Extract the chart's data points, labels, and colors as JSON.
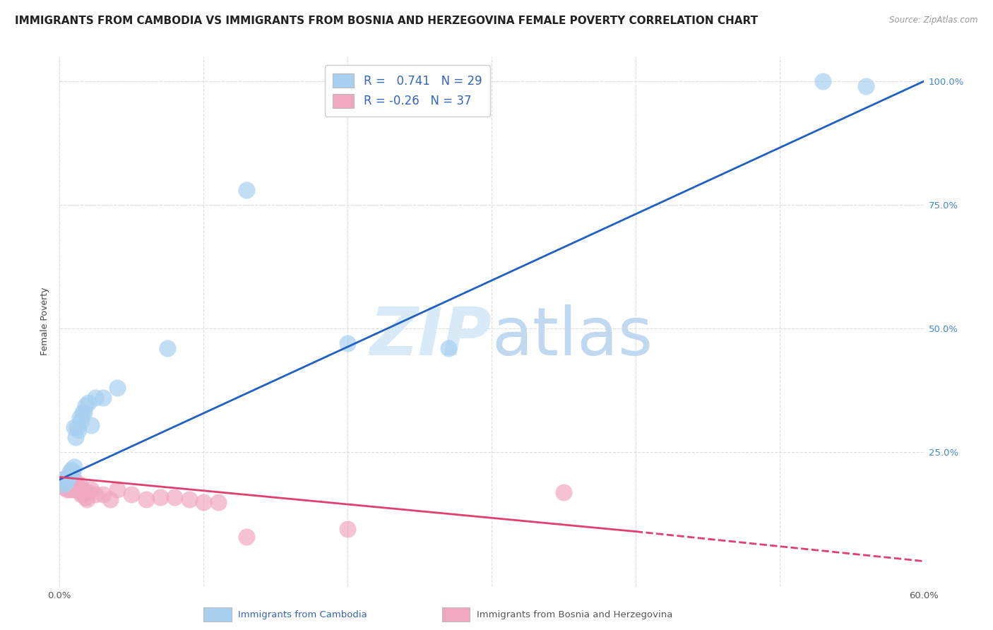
{
  "title": "IMMIGRANTS FROM CAMBODIA VS IMMIGRANTS FROM BOSNIA AND HERZEGOVINA FEMALE POVERTY CORRELATION CHART",
  "source": "Source: ZipAtlas.com",
  "xlabel_label": "Immigrants from Cambodia",
  "xlabel_label2": "Immigrants from Bosnia and Herzegovina",
  "ylabel": "Female Poverty",
  "xlim": [
    0.0,
    0.6
  ],
  "ylim": [
    -0.02,
    1.05
  ],
  "xticks": [
    0.0,
    0.1,
    0.2,
    0.3,
    0.4,
    0.5,
    0.6
  ],
  "xtick_labels": [
    "0.0%",
    "",
    "",
    "",
    "",
    "",
    "60.0%"
  ],
  "yticks": [
    0.0,
    0.25,
    0.5,
    0.75,
    1.0
  ],
  "ytick_labels_right": [
    "",
    "25.0%",
    "50.0%",
    "75.0%",
    "100.0%"
  ],
  "R_cambodia": 0.741,
  "N_cambodia": 29,
  "R_bosnia": -0.26,
  "N_bosnia": 37,
  "cambodia_color": "#a8d0f0",
  "bosnia_color": "#f0a8c0",
  "cambodia_line_color": "#2060c0",
  "bosnia_line_color": "#e04070",
  "watermark_color": "#d8eaf8",
  "background_color": "#ffffff",
  "grid_color": "#dddddd",
  "scatter_cambodia": [
    [
      0.002,
      0.195
    ],
    [
      0.003,
      0.185
    ],
    [
      0.004,
      0.19
    ],
    [
      0.005,
      0.195
    ],
    [
      0.006,
      0.2
    ],
    [
      0.007,
      0.21
    ],
    [
      0.008,
      0.215
    ],
    [
      0.009,
      0.21
    ],
    [
      0.01,
      0.22
    ],
    [
      0.01,
      0.3
    ],
    [
      0.011,
      0.28
    ],
    [
      0.012,
      0.3
    ],
    [
      0.013,
      0.295
    ],
    [
      0.014,
      0.32
    ],
    [
      0.015,
      0.315
    ],
    [
      0.016,
      0.33
    ],
    [
      0.017,
      0.33
    ],
    [
      0.018,
      0.345
    ],
    [
      0.02,
      0.35
    ],
    [
      0.022,
      0.305
    ],
    [
      0.025,
      0.36
    ],
    [
      0.03,
      0.36
    ],
    [
      0.04,
      0.38
    ],
    [
      0.075,
      0.46
    ],
    [
      0.13,
      0.78
    ],
    [
      0.2,
      0.47
    ],
    [
      0.27,
      0.46
    ],
    [
      0.53,
      1.0
    ],
    [
      0.56,
      0.99
    ]
  ],
  "scatter_bosnia": [
    [
      0.002,
      0.195
    ],
    [
      0.003,
      0.18
    ],
    [
      0.004,
      0.185
    ],
    [
      0.005,
      0.175
    ],
    [
      0.005,
      0.19
    ],
    [
      0.006,
      0.185
    ],
    [
      0.007,
      0.175
    ],
    [
      0.008,
      0.18
    ],
    [
      0.009,
      0.175
    ],
    [
      0.01,
      0.18
    ],
    [
      0.01,
      0.195
    ],
    [
      0.011,
      0.185
    ],
    [
      0.012,
      0.175
    ],
    [
      0.013,
      0.18
    ],
    [
      0.014,
      0.185
    ],
    [
      0.015,
      0.17
    ],
    [
      0.015,
      0.165
    ],
    [
      0.016,
      0.175
    ],
    [
      0.017,
      0.165
    ],
    [
      0.018,
      0.16
    ],
    [
      0.019,
      0.155
    ],
    [
      0.02,
      0.17
    ],
    [
      0.022,
      0.175
    ],
    [
      0.025,
      0.165
    ],
    [
      0.03,
      0.165
    ],
    [
      0.035,
      0.155
    ],
    [
      0.04,
      0.175
    ],
    [
      0.05,
      0.165
    ],
    [
      0.06,
      0.155
    ],
    [
      0.07,
      0.16
    ],
    [
      0.08,
      0.16
    ],
    [
      0.09,
      0.155
    ],
    [
      0.1,
      0.15
    ],
    [
      0.11,
      0.15
    ],
    [
      0.13,
      0.08
    ],
    [
      0.2,
      0.095
    ],
    [
      0.35,
      0.17
    ]
  ],
  "title_fontsize": 11,
  "axis_label_fontsize": 9,
  "tick_fontsize": 9.5,
  "legend_fontsize": 12
}
